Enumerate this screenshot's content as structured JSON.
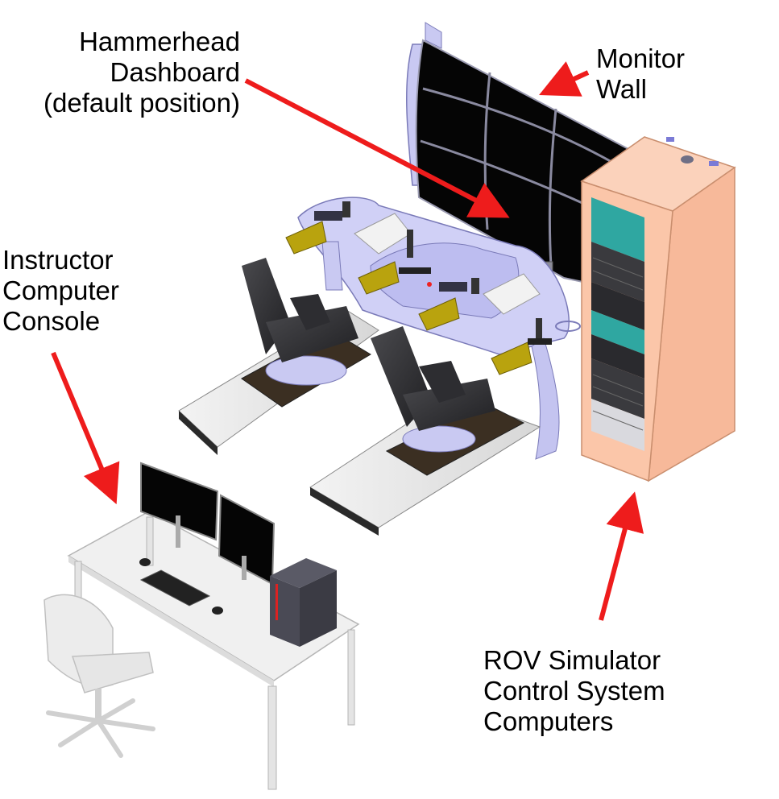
{
  "labels": {
    "hammerhead": "Hammerhead\nDashboard\n(default position)",
    "monitor_wall": "Monitor\nWall",
    "instructor": "Instructor\nComputer\nConsole",
    "rov": "ROV Simulator\nControl System\nComputers"
  },
  "colors": {
    "arrow": "#ee1c1c",
    "dashboard": "#c8c8f4",
    "joystick_arm": "#b9a30e",
    "rack_body": "#fbc3a6",
    "rack_screen": "#2fa7a1",
    "monitor_screen": "#050505",
    "platform": "#e6e6e6"
  },
  "icons": [
    "monitor-wall",
    "hammerhead-dashboard",
    "pilot-chair",
    "server-rack",
    "instructor-desk",
    "office-chair"
  ]
}
